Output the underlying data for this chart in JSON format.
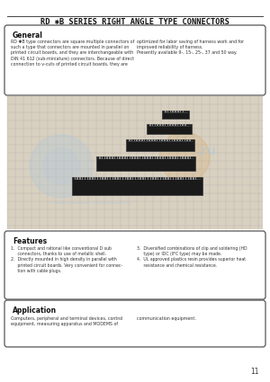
{
  "bg_color": "#f5f3f0",
  "page_bg": "#ffffff",
  "title": "RD ✱B SERIES RIGHT ANGLE TYPE CONNECTORS",
  "title_fontsize": 6.2,
  "header_line_color": "#444444",
  "general_title": "General",
  "general_text_left": "RD ✱B type connectors are square multiple connectors of\nsuch a type that connectors are mounted in parallel on\nprinted circuit boards, and they are interchangeable with\nDIN 41 612 (sub-miniature) connectors. Because of direct\nconnection to v-cuts of printed circuit boards, they are",
  "general_text_right": "optimized for labor saving of harness work and for\nimproved reliability of harness.\nPresently available 9-, 15-, 25-, 37 and 50 way.",
  "features_title": "Features",
  "features_left": [
    "1.  Compact and rational like conventional D sub\n     connectors, thanks to use of metallic shell.",
    "2.  Directly mounted in high density in parallel with\n     printed circuit boards. Very convenient for connec-\n     tion with cable plugs."
  ],
  "features_right": [
    "3.  Diversified combinations of clip and soldering (HD\n     type) or IDC (IFC type) may be made.",
    "4.  UL approved plastics resin provides superior heat\n     resistance and chemical resistance."
  ],
  "application_title": "Application",
  "application_text_left": "Computers, peripheral and terminal devices, control\nequipment, measuring apparatus and MODEMS of",
  "application_text_right": "communication equipment.",
  "page_number": "11",
  "grid_color": "#999999",
  "grid_bg": "#d8d0c0",
  "connector_color": "#1a1a1a",
  "connector_edge": "#404040",
  "watermark_blue": "#a8c8e0",
  "watermark_orange": "#d4a050"
}
